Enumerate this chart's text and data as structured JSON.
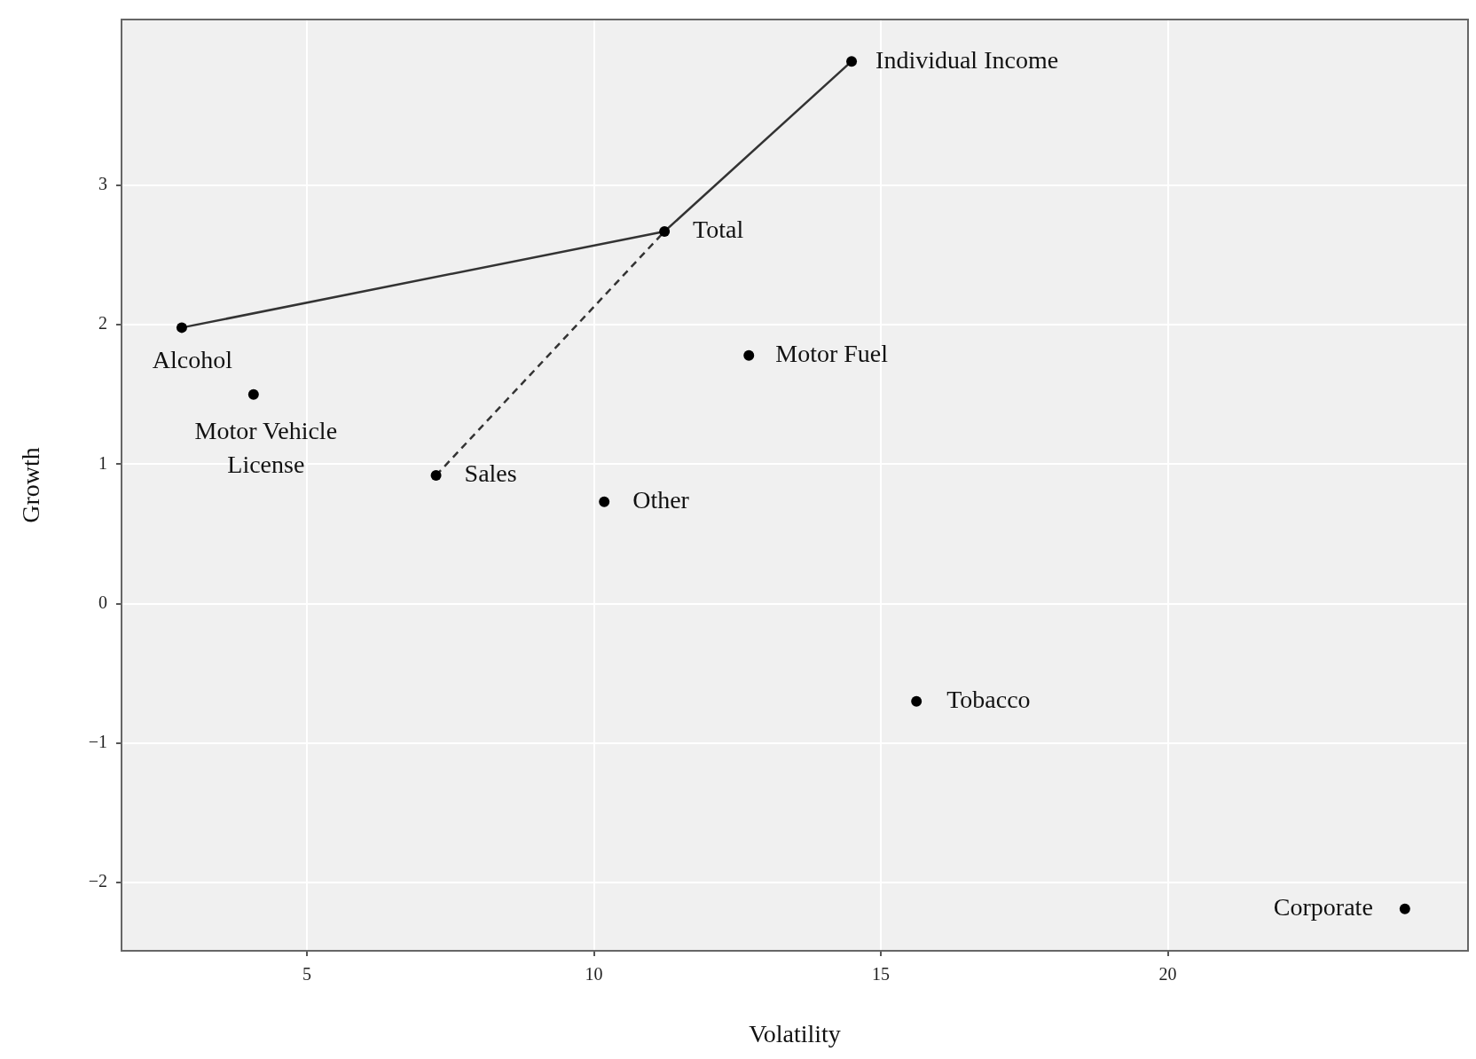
{
  "chart_data": {
    "type": "scatter",
    "xlabel": "Volatility",
    "ylabel": "Growth",
    "xlim": [
      1.77,
      25.23
    ],
    "ylim": [
      -2.49,
      4.19
    ],
    "xticks": [
      5,
      10,
      15,
      20
    ],
    "yticks": [
      {
        "value": -2,
        "label": "−2"
      },
      {
        "value": -1,
        "label": "−1"
      },
      0,
      1,
      2,
      3
    ],
    "grid": true,
    "legend": false,
    "series": [
      {
        "type": "line",
        "color": "#333333",
        "line_style": "solid",
        "marker": "none",
        "x": [
          2.82,
          11.23,
          14.49
        ],
        "values": [
          1.98,
          2.67,
          3.89
        ]
      },
      {
        "type": "line",
        "color": "#333333",
        "line_style": "dashed",
        "marker": "none",
        "x": [
          7.25,
          11.23
        ],
        "values": [
          0.92,
          2.67
        ]
      },
      {
        "color": "#000000",
        "marker": "circle",
        "x": [
          14.49,
          11.23,
          2.82,
          4.07,
          7.25,
          10.18,
          12.7,
          15.62,
          24.13
        ],
        "values": [
          3.89,
          2.67,
          1.98,
          1.5,
          0.92,
          0.73,
          1.78,
          -0.7,
          -2.19
        ]
      }
    ],
    "annotations": [
      {
        "text": "Individual Income",
        "x": 14.49,
        "y": 3.89
      },
      {
        "text": "Total",
        "x": 11.23,
        "y": 2.67
      },
      {
        "text": "Alcohol",
        "x": 2.82,
        "y": 1.98
      },
      {
        "text": "Motor Vehicle License",
        "x": 4.07,
        "y": 1.5
      },
      {
        "text": "Sales",
        "x": 7.25,
        "y": 0.92
      },
      {
        "text": "Other",
        "x": 10.18,
        "y": 0.73
      },
      {
        "text": "Motor Fuel",
        "x": 12.7,
        "y": 1.78
      },
      {
        "text": "Tobacco",
        "x": 15.62,
        "y": -0.7
      },
      {
        "text": "Corporate",
        "x": 24.13,
        "y": -2.19
      }
    ]
  }
}
